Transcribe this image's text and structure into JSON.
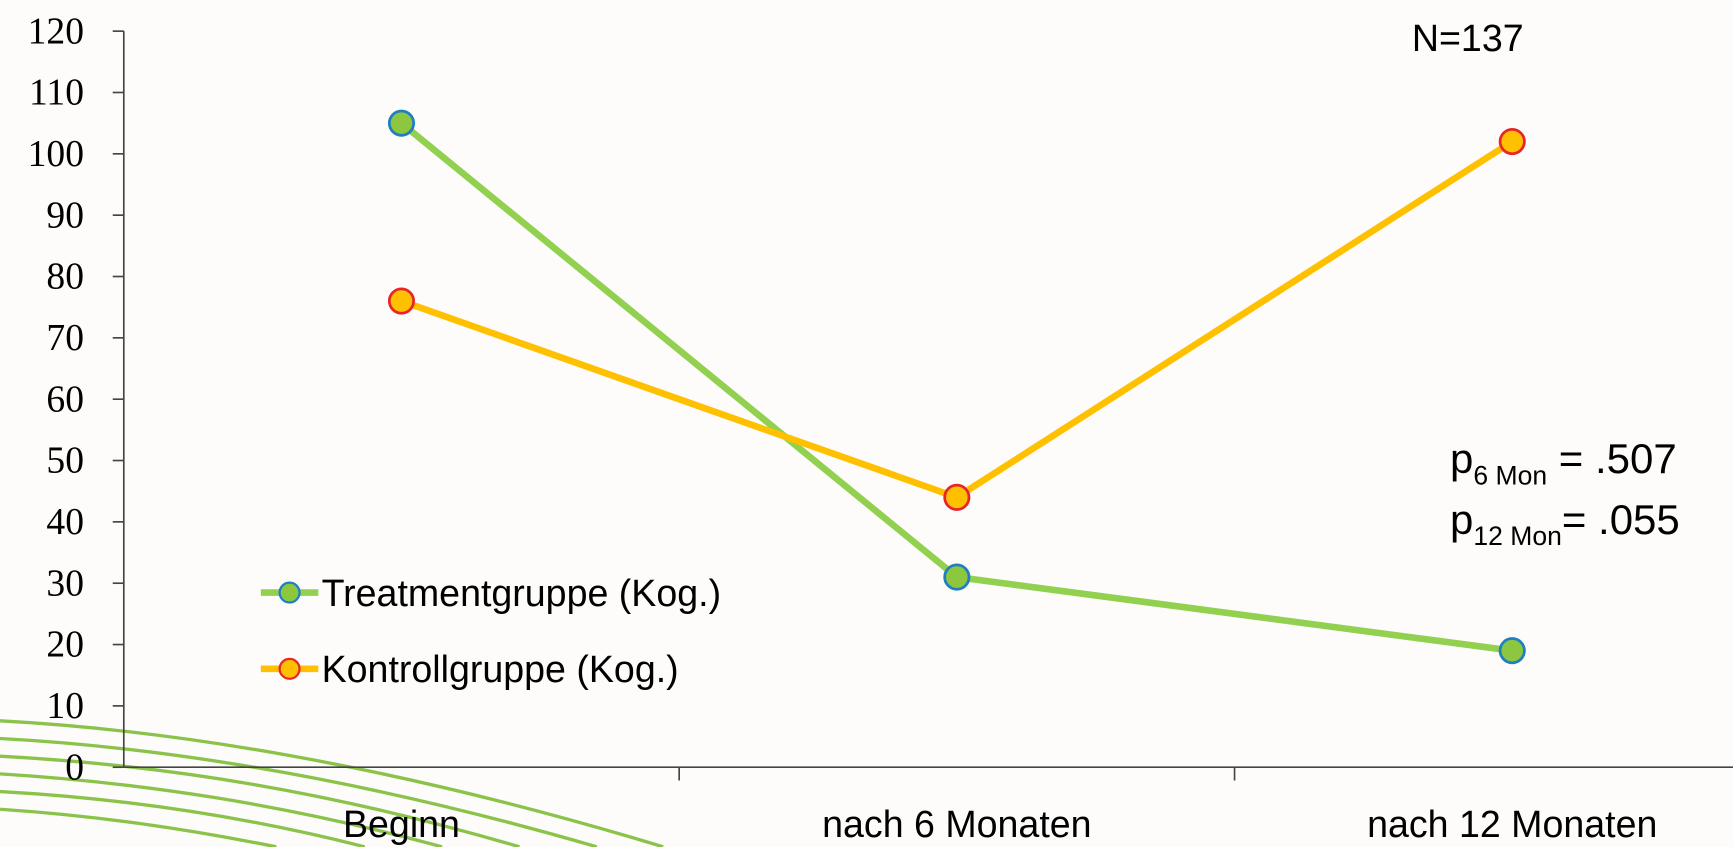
{
  "chart_data": {
    "type": "line",
    "categories": [
      "Beginn",
      "nach 6 Monaten",
      "nach 12 Monaten"
    ],
    "series": [
      {
        "name": "Treatmentgruppe (Kog.)",
        "color": "#92d050",
        "marker_color": "#8dc63f",
        "marker_edge_color": "#1f7fc0",
        "values": [
          105,
          31,
          19
        ]
      },
      {
        "name": "Kontrollgruppe (Kog.)",
        "color": "#ffc000",
        "marker_color": "#ffc000",
        "marker_edge_color": "#e8262a",
        "values": [
          76,
          44,
          102
        ]
      }
    ],
    "ylim": [
      0,
      120
    ],
    "yticks": [
      0,
      10,
      20,
      30,
      40,
      50,
      60,
      70,
      80,
      90,
      100,
      110,
      120
    ],
    "legend": "lower left",
    "annotations": [
      "N=137"
    ],
    "p_values": [
      {
        "symbol": "p",
        "subscript": "6 Mon",
        "text": " = .507"
      },
      {
        "symbol": "p",
        "subscript": "12 Mon",
        "text": "= .055"
      }
    ]
  }
}
